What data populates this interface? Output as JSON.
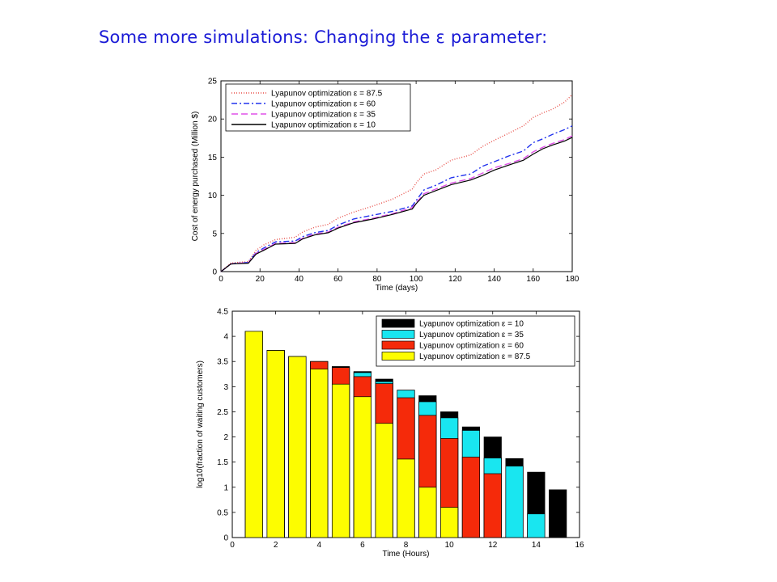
{
  "slide": {
    "title": "Some more simulations: Changing the ε parameter:"
  },
  "chart_data": [
    {
      "type": "line",
      "xlabel": "Time (days)",
      "ylabel": "Cost of energy purchased (Million $)",
      "xlim": [
        0,
        180
      ],
      "ylim": [
        0,
        25
      ],
      "xticks": [
        0,
        20,
        40,
        60,
        80,
        100,
        120,
        140,
        160,
        180
      ],
      "yticks": [
        0,
        5,
        10,
        15,
        20,
        25
      ],
      "legend_position": "top-left",
      "grid": false,
      "series": [
        {
          "name": "Lyapunov optimization ε = 87.5",
          "color": "#e8504a",
          "dash": "1,2",
          "x": [
            0,
            5,
            8,
            14,
            18,
            22,
            28,
            38,
            42,
            48,
            55,
            60,
            68,
            78,
            88,
            98,
            100,
            104,
            110,
            118,
            128,
            134,
            140,
            148,
            155,
            160,
            165,
            170,
            176,
            180
          ],
          "y": [
            0,
            1.1,
            1.2,
            1.3,
            2.8,
            3.5,
            4.2,
            4.5,
            5.2,
            5.8,
            6.2,
            7.0,
            7.8,
            8.6,
            9.5,
            10.8,
            11.6,
            12.8,
            13.3,
            14.6,
            15.3,
            16.4,
            17.2,
            18.2,
            19.1,
            20.2,
            20.8,
            21.3,
            22.2,
            23.2
          ]
        },
        {
          "name": "Lyapunov optimization ε = 60",
          "color": "#2233ee",
          "dash": "7,3,2,3",
          "x": [
            0,
            5,
            8,
            14,
            18,
            22,
            28,
            38,
            42,
            48,
            55,
            60,
            68,
            78,
            88,
            98,
            100,
            104,
            110,
            118,
            128,
            134,
            140,
            148,
            155,
            160,
            165,
            170,
            176,
            180
          ],
          "y": [
            0,
            1.0,
            1.1,
            1.2,
            2.5,
            3.1,
            3.9,
            4.0,
            4.6,
            5.1,
            5.4,
            6.1,
            6.9,
            7.4,
            7.9,
            8.6,
            9.3,
            10.7,
            11.3,
            12.3,
            12.8,
            13.8,
            14.4,
            15.2,
            15.8,
            16.9,
            17.4,
            18.0,
            18.6,
            19.1
          ]
        },
        {
          "name": "Lyapunov optimization ε = 35",
          "color": "#e050e8",
          "dash": "8,4",
          "x": [
            0,
            5,
            8,
            14,
            18,
            22,
            28,
            38,
            42,
            48,
            55,
            60,
            68,
            78,
            88,
            98,
            100,
            104,
            110,
            118,
            128,
            134,
            140,
            148,
            155,
            160,
            165,
            170,
            176,
            180
          ],
          "y": [
            0,
            1.0,
            1.1,
            1.15,
            2.4,
            2.9,
            3.7,
            3.8,
            4.4,
            4.9,
            5.2,
            5.8,
            6.5,
            7.0,
            7.6,
            8.4,
            9.0,
            10.2,
            10.8,
            11.6,
            12.2,
            12.9,
            13.6,
            14.2,
            14.8,
            15.7,
            16.3,
            16.8,
            17.3,
            17.8
          ]
        },
        {
          "name": "Lyapunov optimization ε = 10",
          "color": "#000000",
          "dash": "",
          "x": [
            0,
            5,
            8,
            14,
            18,
            22,
            28,
            38,
            42,
            48,
            55,
            60,
            68,
            78,
            88,
            98,
            100,
            104,
            110,
            118,
            128,
            134,
            140,
            148,
            155,
            160,
            165,
            170,
            176,
            180
          ],
          "y": [
            0,
            1.0,
            1.05,
            1.1,
            2.3,
            2.8,
            3.6,
            3.7,
            4.3,
            4.8,
            5.1,
            5.7,
            6.4,
            6.9,
            7.5,
            8.2,
            8.9,
            10.0,
            10.6,
            11.4,
            12.0,
            12.6,
            13.3,
            14.0,
            14.6,
            15.4,
            16.1,
            16.6,
            17.1,
            17.6
          ]
        }
      ]
    },
    {
      "type": "bar",
      "xlabel": "Time (Hours)",
      "ylabel": "log10(fraction of waiting customers)",
      "xlim": [
        0,
        16
      ],
      "ylim": [
        0,
        4.5
      ],
      "xticks": [
        0,
        2,
        4,
        6,
        8,
        10,
        12,
        14,
        16
      ],
      "yticks": [
        0,
        0.5,
        1,
        1.5,
        2,
        2.5,
        3,
        3.5,
        4,
        4.5
      ],
      "legend_position": "top-right",
      "grid": false,
      "categories": [
        1,
        2,
        3,
        4,
        5,
        6,
        7,
        8,
        9,
        10,
        11,
        12,
        13,
        14,
        15
      ],
      "series": [
        {
          "name": "Lyapunov optimization ε = 10",
          "color": "#000000",
          "values": [
            4.1,
            3.72,
            3.6,
            3.5,
            3.4,
            3.3,
            3.15,
            2.93,
            2.82,
            2.5,
            2.2,
            2.0,
            1.57,
            1.3,
            0.95
          ]
        },
        {
          "name": "Lyapunov optimization ε = 35",
          "color": "#19e6f0",
          "values": [
            4.1,
            3.72,
            3.6,
            3.5,
            3.38,
            3.28,
            3.1,
            2.93,
            2.7,
            2.38,
            2.13,
            1.58,
            1.42,
            0.47,
            0
          ]
        },
        {
          "name": "Lyapunov optimization ε = 60",
          "color": "#f52a0a",
          "values": [
            4.1,
            3.72,
            3.6,
            3.5,
            3.38,
            3.2,
            3.06,
            2.78,
            2.43,
            1.97,
            1.6,
            1.27,
            0,
            0,
            0
          ]
        },
        {
          "name": "Lyapunov optimization ε = 87.5",
          "color": "#fdfd00",
          "values": [
            4.1,
            3.72,
            3.6,
            3.35,
            3.05,
            2.8,
            2.27,
            1.56,
            1.0,
            0.6,
            0,
            0,
            0,
            0,
            0
          ]
        }
      ]
    }
  ]
}
